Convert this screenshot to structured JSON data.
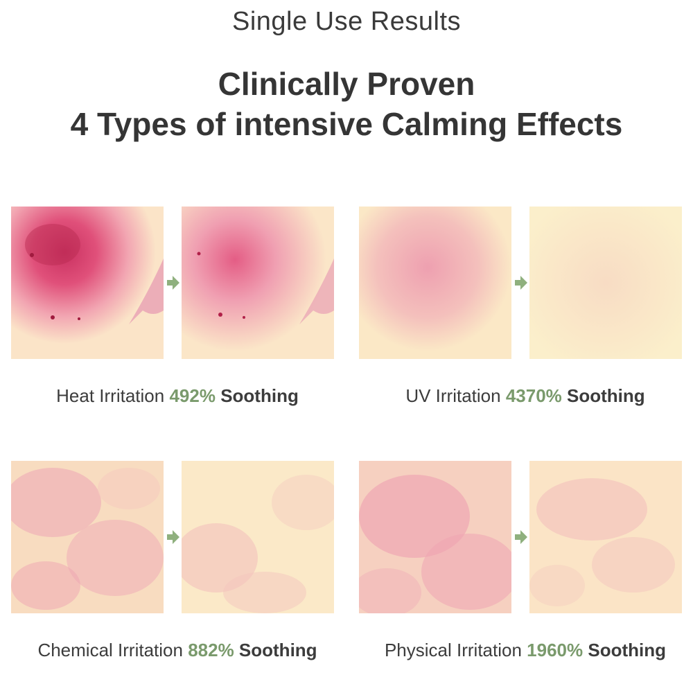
{
  "header": {
    "subtitle": "Single Use Results",
    "title_line1": "Clinically Proven",
    "title_line2": "4 Types of intensive Calming Effects"
  },
  "colors": {
    "accent_green": "#7a9a6c",
    "arrow_green": "#8fb07e",
    "skin_base": "#fbecc8",
    "redness": "#e0507a"
  },
  "icons": {
    "arrow": "arrow-right-icon"
  },
  "panels": [
    {
      "label": "Heat Irritation",
      "percent": "492%",
      "suffix": "Soothing"
    },
    {
      "label": "UV Irritation",
      "percent": "4370%",
      "suffix": "Soothing"
    },
    {
      "label": "Chemical Irritation",
      "percent": "882%",
      "suffix": "Soothing"
    },
    {
      "label": "Physical Irritation",
      "percent": "1960%",
      "suffix": "Soothing"
    }
  ]
}
